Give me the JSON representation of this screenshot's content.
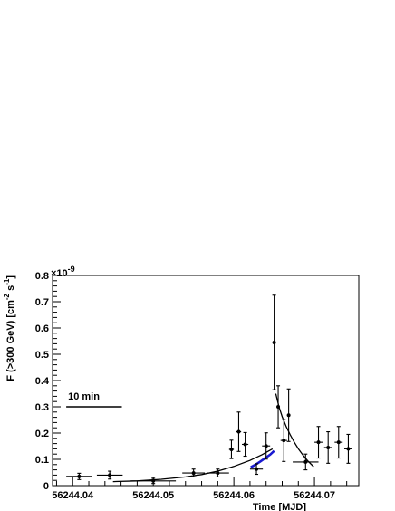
{
  "chart_data": {
    "type": "scatter",
    "xlabel": "Time [MJD]",
    "ylabel": "F (>300 GeV) [cm",
    "ylabel_sup1": "-2",
    "ylabel_mid": " s",
    "ylabel_sup2": "-1",
    "ylabel_end": "]",
    "y_exponent_label": "×10",
    "y_exponent_power": "-9",
    "xlim": [
      56244.0375,
      56244.0755
    ],
    "ylim": [
      0,
      0.8
    ],
    "x_tick_labels": [
      "56244.04",
      "56244.05",
      "56244.06",
      "56244.07"
    ],
    "x_ticks": [
      56244.04,
      56244.05,
      56244.06,
      56244.07
    ],
    "y_tick_labels": [
      "0",
      "0.1",
      "0.2",
      "0.3",
      "0.4",
      "0.5",
      "0.6",
      "0.7",
      "0.8"
    ],
    "y_ticks": [
      0,
      0.1,
      0.2,
      0.3,
      0.4,
      0.5,
      0.6,
      0.7,
      0.8
    ],
    "scale_bar": {
      "label": "10 min",
      "y": 0.3,
      "x_start": 56244.0392,
      "x_end": 56244.0461
    },
    "points": [
      {
        "x": 56244.0408,
        "xerr": 0.0016,
        "y": 0.035,
        "yerr_lo": 0.012,
        "yerr_hi": 0.012
      },
      {
        "x": 56244.0446,
        "xerr": 0.0016,
        "y": 0.04,
        "yerr_lo": 0.015,
        "yerr_hi": 0.015
      },
      {
        "x": 56244.05,
        "xerr": 0.0028,
        "y": 0.018,
        "yerr_lo": 0.01,
        "yerr_hi": 0.01
      },
      {
        "x": 56244.055,
        "xerr": 0.0014,
        "y": 0.048,
        "yerr_lo": 0.015,
        "yerr_hi": 0.015
      },
      {
        "x": 56244.058,
        "xerr": 0.0014,
        "y": 0.048,
        "yerr_lo": 0.015,
        "yerr_hi": 0.015
      },
      {
        "x": 56244.0597,
        "xerr": 0.0003,
        "y": 0.138,
        "yerr_lo": 0.035,
        "yerr_hi": 0.035
      },
      {
        "x": 56244.0606,
        "xerr": 0.0003,
        "y": 0.205,
        "yerr_lo": 0.075,
        "yerr_hi": 0.075
      },
      {
        "x": 56244.0614,
        "xerr": 0.0004,
        "y": 0.157,
        "yerr_lo": 0.045,
        "yerr_hi": 0.045
      },
      {
        "x": 56244.0628,
        "xerr": 0.0008,
        "y": 0.063,
        "yerr_lo": 0.02,
        "yerr_hi": 0.02
      },
      {
        "x": 56244.064,
        "xerr": 0.0005,
        "y": 0.151,
        "yerr_lo": 0.05,
        "yerr_hi": 0.05
      },
      {
        "x": 56244.065,
        "xerr": 0.0002,
        "y": 0.545,
        "yerr_lo": 0.18,
        "yerr_hi": 0.18
      },
      {
        "x": 56244.0655,
        "xerr": 0.0002,
        "y": 0.3,
        "yerr_lo": 0.08,
        "yerr_hi": 0.08
      },
      {
        "x": 56244.0662,
        "xerr": 0.0004,
        "y": 0.172,
        "yerr_lo": 0.08,
        "yerr_hi": 0.08
      },
      {
        "x": 56244.0668,
        "xerr": 0.0002,
        "y": 0.268,
        "yerr_lo": 0.1,
        "yerr_hi": 0.1
      },
      {
        "x": 56244.0689,
        "xerr": 0.0016,
        "y": 0.09,
        "yerr_lo": 0.03,
        "yerr_hi": 0.03
      },
      {
        "x": 56244.0705,
        "xerr": 0.0005,
        "y": 0.165,
        "yerr_lo": 0.06,
        "yerr_hi": 0.06
      },
      {
        "x": 56244.0717,
        "xerr": 0.0005,
        "y": 0.145,
        "yerr_lo": 0.06,
        "yerr_hi": 0.06
      },
      {
        "x": 56244.073,
        "xerr": 0.0005,
        "y": 0.165,
        "yerr_lo": 0.06,
        "yerr_hi": 0.06
      },
      {
        "x": 56244.0742,
        "xerr": 0.0005,
        "y": 0.14,
        "yerr_lo": 0.055,
        "yerr_hi": 0.055
      }
    ],
    "fits": [
      {
        "color": "#000000",
        "points": [
          [
            56244.045,
            0.015
          ],
          [
            56244.048,
            0.018
          ],
          [
            56244.051,
            0.024
          ],
          [
            56244.054,
            0.033
          ],
          [
            56244.056,
            0.042
          ],
          [
            56244.058,
            0.055
          ],
          [
            56244.06,
            0.073
          ],
          [
            56244.062,
            0.096
          ],
          [
            56244.0635,
            0.118
          ],
          [
            56244.0648,
            0.14
          ]
        ]
      },
      {
        "color": "#000000",
        "points": [
          [
            56244.0652,
            0.35
          ],
          [
            56244.0656,
            0.3
          ],
          [
            56244.066,
            0.262
          ],
          [
            56244.0665,
            0.225
          ],
          [
            56244.067,
            0.193
          ],
          [
            56244.0675,
            0.165
          ],
          [
            56244.068,
            0.14
          ],
          [
            56244.0686,
            0.115
          ],
          [
            56244.0692,
            0.093
          ],
          [
            56244.0699,
            0.072
          ]
        ]
      },
      {
        "color": "#1a1ad0",
        "points": [
          [
            56244.0621,
            0.07
          ],
          [
            56244.0627,
            0.08
          ],
          [
            56244.0633,
            0.092
          ],
          [
            56244.0639,
            0.105
          ],
          [
            56244.0645,
            0.118
          ],
          [
            56244.065,
            0.132
          ]
        ]
      }
    ]
  }
}
